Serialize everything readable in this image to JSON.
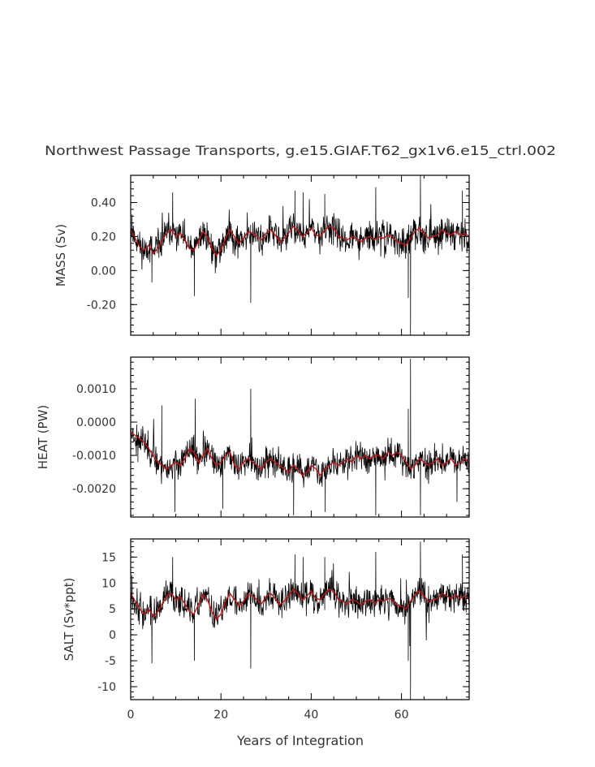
{
  "figure": {
    "title": "Northwest Passage Transports, g.e15.GIAF.T62_gx1v6.e15_ctrl.002",
    "xlabel": "Years of Integration"
  },
  "colors": {
    "raw_line": "#000000",
    "smooth_line": "#cc1111",
    "frame": "#000000",
    "text": "#333333"
  },
  "chart_data": [
    {
      "type": "line",
      "panel": "mass",
      "ylabel": "MASS (Sv)",
      "xlim": [
        0,
        75
      ],
      "ylim": [
        -0.38,
        0.56
      ],
      "x_ticks": [
        0,
        20,
        40,
        60
      ],
      "x_tick_labels": [
        "0",
        "20",
        "40",
        "60"
      ],
      "y_ticks": [
        -0.2,
        0.0,
        0.2,
        0.4
      ],
      "y_tick_labels": [
        "-0.20",
        "0.00",
        "0.20",
        "0.40"
      ],
      "baseline": 0.2,
      "noise": 0.075,
      "seed": 11,
      "smooth_x": [
        0,
        1,
        2,
        3,
        4,
        5,
        6,
        7,
        8,
        9,
        10,
        11,
        12,
        13,
        14,
        15,
        16,
        17,
        18,
        19,
        20,
        21,
        22,
        23,
        24,
        25,
        26,
        27,
        28,
        29,
        30,
        31,
        32,
        33,
        34,
        35,
        36,
        37,
        38,
        39,
        40,
        41,
        42,
        43,
        44,
        45,
        46,
        47,
        48,
        49,
        50,
        51,
        52,
        53,
        54,
        55,
        56,
        57,
        58,
        59,
        60,
        61,
        62,
        63,
        64,
        65,
        66,
        67,
        68,
        69,
        70,
        71,
        72,
        73,
        74,
        75
      ],
      "smooth_y": [
        0.24,
        0.19,
        0.14,
        0.12,
        0.15,
        0.1,
        0.13,
        0.18,
        0.22,
        0.24,
        0.2,
        0.22,
        0.18,
        0.13,
        0.12,
        0.17,
        0.23,
        0.2,
        0.13,
        0.09,
        0.12,
        0.19,
        0.24,
        0.2,
        0.16,
        0.19,
        0.23,
        0.22,
        0.2,
        0.18,
        0.22,
        0.24,
        0.21,
        0.17,
        0.19,
        0.22,
        0.26,
        0.24,
        0.2,
        0.22,
        0.25,
        0.21,
        0.2,
        0.24,
        0.26,
        0.25,
        0.2,
        0.19,
        0.18,
        0.2,
        0.19,
        0.17,
        0.19,
        0.2,
        0.18,
        0.2,
        0.19,
        0.21,
        0.2,
        0.17,
        0.16,
        0.15,
        0.19,
        0.23,
        0.25,
        0.22,
        0.19,
        0.2,
        0.21,
        0.24,
        0.22,
        0.21,
        0.23,
        0.21,
        0.22,
        0.2
      ],
      "spikes": [
        [
          0.3,
          0.33
        ],
        [
          4.7,
          -0.07
        ],
        [
          9.3,
          0.46
        ],
        [
          14.1,
          -0.15
        ],
        [
          26.6,
          -0.19
        ],
        [
          36.4,
          0.47
        ],
        [
          38.2,
          0.46
        ],
        [
          43.0,
          0.45
        ],
        [
          54.3,
          0.49
        ],
        [
          61.5,
          -0.16
        ],
        [
          61.8,
          0.1
        ],
        [
          62.0,
          -0.38
        ],
        [
          64.2,
          0.56
        ],
        [
          73.5,
          0.47
        ]
      ]
    },
    {
      "type": "line",
      "panel": "heat",
      "ylabel": "HEAT (PW)",
      "xlim": [
        0,
        75
      ],
      "ylim": [
        -0.00285,
        0.00195
      ],
      "x_ticks": [
        0,
        20,
        40,
        60
      ],
      "x_tick_labels": [
        "0",
        "20",
        "40",
        "60"
      ],
      "y_ticks": [
        -0.002,
        -0.001,
        0.0,
        0.001
      ],
      "y_tick_labels": [
        "-0.0020",
        "-0.0010",
        "0.0000",
        "0.0010"
      ],
      "baseline": -0.0011,
      "noise": 0.00035,
      "seed": 23,
      "smooth_x": [
        0,
        1,
        2,
        3,
        4,
        5,
        6,
        7,
        8,
        9,
        10,
        11,
        12,
        13,
        14,
        15,
        16,
        17,
        18,
        19,
        20,
        21,
        22,
        23,
        24,
        25,
        26,
        27,
        28,
        29,
        30,
        31,
        32,
        33,
        34,
        35,
        36,
        37,
        38,
        39,
        40,
        41,
        42,
        43,
        44,
        45,
        46,
        47,
        48,
        49,
        50,
        51,
        52,
        53,
        54,
        55,
        56,
        57,
        58,
        59,
        60,
        61,
        62,
        63,
        64,
        65,
        66,
        67,
        68,
        69,
        70,
        71,
        72,
        73,
        74,
        75
      ],
      "smooth_y": [
        -0.0003,
        -0.0004,
        -0.0005,
        -0.0006,
        -0.0008,
        -0.001,
        -0.0012,
        -0.0013,
        -0.0014,
        -0.0013,
        -0.0012,
        -0.0013,
        -0.0011,
        -0.0008,
        -0.0009,
        -0.0012,
        -0.001,
        -0.0008,
        -0.0011,
        -0.0013,
        -0.0012,
        -0.001,
        -0.0009,
        -0.0013,
        -0.0014,
        -0.0012,
        -0.0011,
        -0.0012,
        -0.0013,
        -0.0014,
        -0.0012,
        -0.0011,
        -0.0012,
        -0.0013,
        -0.0014,
        -0.0015,
        -0.0013,
        -0.0014,
        -0.0016,
        -0.0015,
        -0.0013,
        -0.0014,
        -0.0016,
        -0.0014,
        -0.0013,
        -0.0012,
        -0.0013,
        -0.0012,
        -0.0011,
        -0.0012,
        -0.001,
        -0.0011,
        -0.001,
        -0.0011,
        -0.001,
        -0.001,
        -0.0011,
        -0.0009,
        -0.001,
        -0.0009,
        -0.001,
        -0.0012,
        -0.0014,
        -0.0013,
        -0.0011,
        -0.0012,
        -0.0013,
        -0.0012,
        -0.0011,
        -0.0013,
        -0.0012,
        -0.0011,
        -0.0013,
        -0.0012,
        -0.0011,
        -0.0012
      ],
      "spikes": [
        [
          1.6,
          -0.0012
        ],
        [
          6.9,
          0.0005
        ],
        [
          9.8,
          -0.0027
        ],
        [
          14.3,
          0.0007
        ],
        [
          20.4,
          -0.0026
        ],
        [
          26.6,
          0.001
        ],
        [
          36.1,
          -0.0028
        ],
        [
          43.1,
          -0.0027
        ],
        [
          54.3,
          -0.0028
        ],
        [
          61.5,
          0.0004
        ],
        [
          62.0,
          0.0019
        ],
        [
          64.2,
          -0.0028
        ],
        [
          72.3,
          -0.0024
        ]
      ]
    },
    {
      "type": "line",
      "panel": "salt",
      "ylabel": "SALT (Sv*ppt)",
      "xlim": [
        0,
        75
      ],
      "ylim": [
        -12.5,
        18.5
      ],
      "x_ticks": [
        0,
        20,
        40,
        60
      ],
      "x_tick_labels": [
        "0",
        "20",
        "40",
        "60"
      ],
      "y_ticks": [
        -10,
        -5,
        0,
        5,
        10,
        15
      ],
      "y_tick_labels": [
        "-10",
        "-5",
        "0",
        "5",
        "10",
        "15"
      ],
      "baseline": 6.5,
      "noise": 2.5,
      "seed": 37,
      "smooth_x": [
        0,
        1,
        2,
        3,
        4,
        5,
        6,
        7,
        8,
        9,
        10,
        11,
        12,
        13,
        14,
        15,
        16,
        17,
        18,
        19,
        20,
        21,
        22,
        23,
        24,
        25,
        26,
        27,
        28,
        29,
        30,
        31,
        32,
        33,
        34,
        35,
        36,
        37,
        38,
        39,
        40,
        41,
        42,
        43,
        44,
        45,
        46,
        47,
        48,
        49,
        50,
        51,
        52,
        53,
        54,
        55,
        56,
        57,
        58,
        59,
        60,
        61,
        62,
        63,
        64,
        65,
        66,
        67,
        68,
        69,
        70,
        71,
        72,
        73,
        74,
        75
      ],
      "smooth_y": [
        8.0,
        6.5,
        5.0,
        4.0,
        5.0,
        3.5,
        4.5,
        6.0,
        7.5,
        8.0,
        6.8,
        7.4,
        6.0,
        4.5,
        4.0,
        5.8,
        7.8,
        6.8,
        4.5,
        3.0,
        4.0,
        6.5,
        8.0,
        6.8,
        5.5,
        6.5,
        7.8,
        7.5,
        6.8,
        6.0,
        7.4,
        8.0,
        7.0,
        5.8,
        6.5,
        7.5,
        8.8,
        8.0,
        6.8,
        7.4,
        8.5,
        7.0,
        6.8,
        8.0,
        8.8,
        8.5,
        6.8,
        6.5,
        6.0,
        6.8,
        6.5,
        5.8,
        6.5,
        6.8,
        6.0,
        6.8,
        6.5,
        7.0,
        6.8,
        5.8,
        5.5,
        5.0,
        6.5,
        7.8,
        8.5,
        7.5,
        6.5,
        6.8,
        7.0,
        8.0,
        7.5,
        7.0,
        7.8,
        7.0,
        7.5,
        6.8
      ],
      "spikes": [
        [
          0.3,
          11.5
        ],
        [
          4.7,
          -5.5
        ],
        [
          9.3,
          15.0
        ],
        [
          14.1,
          -5.0
        ],
        [
          26.6,
          -6.5
        ],
        [
          36.4,
          15.5
        ],
        [
          38.2,
          15.0
        ],
        [
          43.0,
          15.0
        ],
        [
          54.3,
          16.0
        ],
        [
          61.5,
          -5.0
        ],
        [
          61.8,
          3.0
        ],
        [
          62.0,
          -12.5
        ],
        [
          64.2,
          18.0
        ],
        [
          73.5,
          15.5
        ]
      ]
    }
  ]
}
